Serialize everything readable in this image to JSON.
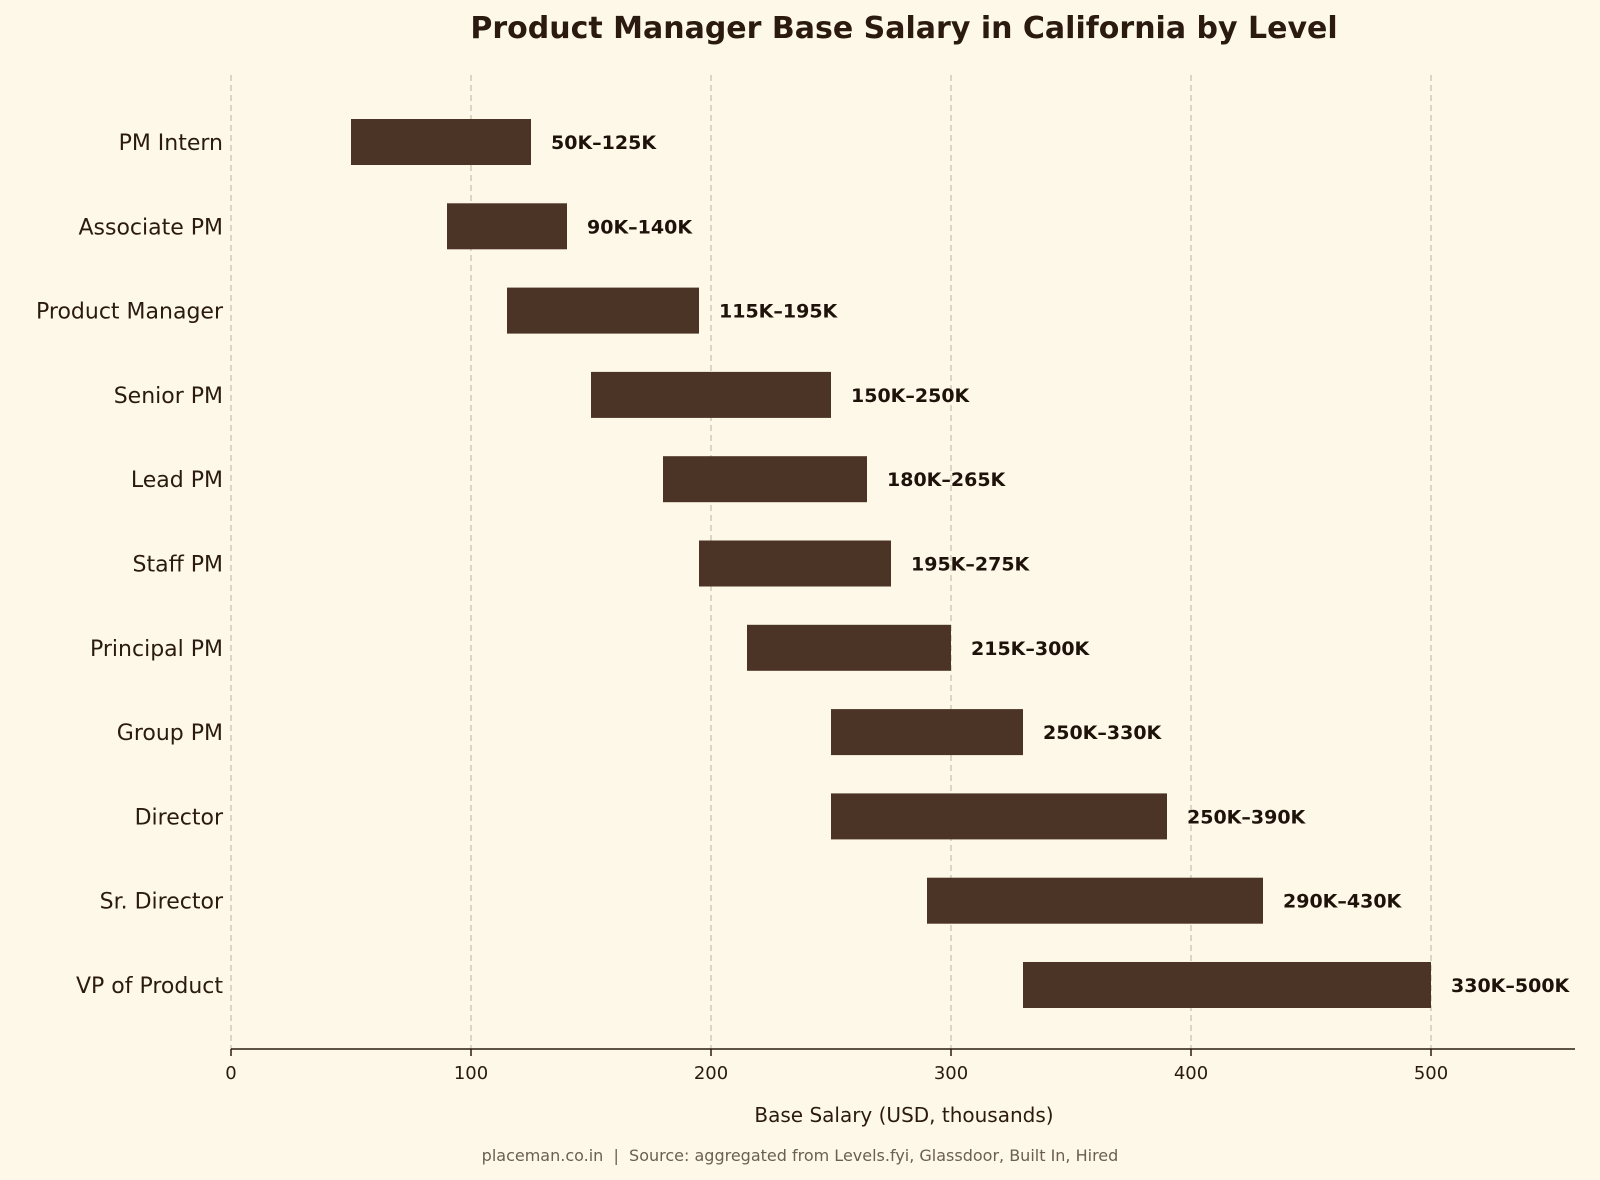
{
  "chart_data": {
    "type": "bar",
    "orientation": "horizontal-range",
    "title": "Product Manager Base Salary in California by Level",
    "xlabel": "Base Salary (USD, thousands)",
    "xlim": [
      0,
      560
    ],
    "xticks": [
      0,
      100,
      200,
      300,
      400,
      500
    ],
    "grid": "vertical dashed",
    "bar_color": "#4b3326",
    "categories": [
      "PM Intern",
      "Associate PM",
      "Product Manager",
      "Senior PM",
      "Lead PM",
      "Staff PM",
      "Principal PM",
      "Group PM",
      "Director",
      "Sr. Director",
      "VP of Product"
    ],
    "ranges": [
      {
        "low": 50,
        "high": 125
      },
      {
        "low": 90,
        "high": 140
      },
      {
        "low": 115,
        "high": 195
      },
      {
        "low": 150,
        "high": 250
      },
      {
        "low": 180,
        "high": 265
      },
      {
        "low": 195,
        "high": 275
      },
      {
        "low": 215,
        "high": 300
      },
      {
        "low": 250,
        "high": 330
      },
      {
        "low": 250,
        "high": 390
      },
      {
        "low": 290,
        "high": 430
      },
      {
        "low": 330,
        "high": 500
      }
    ],
    "bar_labels": [
      "50K–125K",
      "90K–140K",
      "115K–195K",
      "150K–250K",
      "180K–265K",
      "195K–275K",
      "215K–300K",
      "250K–330K",
      "250K–390K",
      "290K–430K",
      "330K–500K"
    ]
  },
  "footer": {
    "source": "placeman.co.in  |  Source: aggregated from Levels.fyi, Glassdoor, Built In, Hired"
  }
}
